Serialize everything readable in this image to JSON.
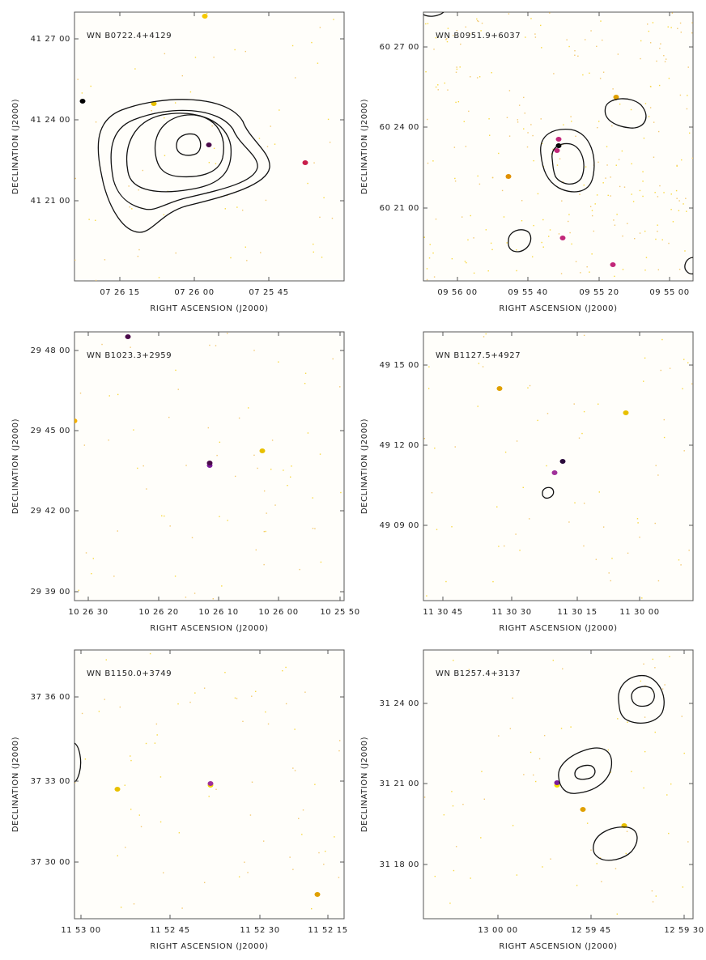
{
  "panels": [
    {
      "label": "WN B0722.4+4129",
      "xticks": [
        "07 26 15",
        "07 26 00",
        "07 25 45"
      ],
      "yticks": [
        "41 27 00",
        "41 24 00",
        "41 21 00"
      ],
      "xlabel": "RIGHT ASCENSION (J2000)",
      "ylabel": "DECLINATION (J2000)"
    },
    {
      "label": "WN B0951.9+6037",
      "xticks": [
        "09 56 00",
        "09 55 40",
        "09 55 20",
        "09 55 00"
      ],
      "yticks": [
        "60 27 00",
        "60 24 00",
        "60 21 00"
      ],
      "xlabel": "RIGHT ASCENSION (J2000)",
      "ylabel": "DECLINATION (J2000)"
    },
    {
      "label": "WN B1023.3+2959",
      "xticks": [
        "10 26 30",
        "10 26 20",
        "10 26 10",
        "10 26 00",
        "10 25 50"
      ],
      "yticks": [
        "29 48 00",
        "29 45 00",
        "29 42 00",
        "29 39 00"
      ],
      "xlabel": "RIGHT ASCENSION (J2000)",
      "ylabel": "DECLINATION (J2000)"
    },
    {
      "label": "WN B1127.5+4927",
      "xticks": [
        "11 30 45",
        "11 30 30",
        "11 30 15",
        "11 30 00"
      ],
      "yticks": [
        "49 15 00",
        "49 12 00",
        "49 09 00"
      ],
      "xlabel": "RIGHT ASCENSION (J2000)",
      "ylabel": "DECLINATION (J2000)"
    },
    {
      "label": "WN B1150.0+3749",
      "xticks": [
        "11 53 00",
        "11 52 45",
        "11 52 30",
        "11 52 15"
      ],
      "yticks": [
        "37 36 00",
        "37 33 00",
        "37 30 00"
      ],
      "xlabel": "RIGHT ASCENSION (J2000)",
      "ylabel": "DECLINATION (J2000)"
    },
    {
      "label": "WN B1257.4+3137",
      "xticks": [
        "13 00 00",
        "12 59 45",
        "12 59 30"
      ],
      "yticks": [
        "31 24 00",
        "31 21 00",
        "31 18 00"
      ],
      "xlabel": "RIGHT ASCENSION (J2000)",
      "ylabel": "DECLINATION (J2000)"
    }
  ]
}
